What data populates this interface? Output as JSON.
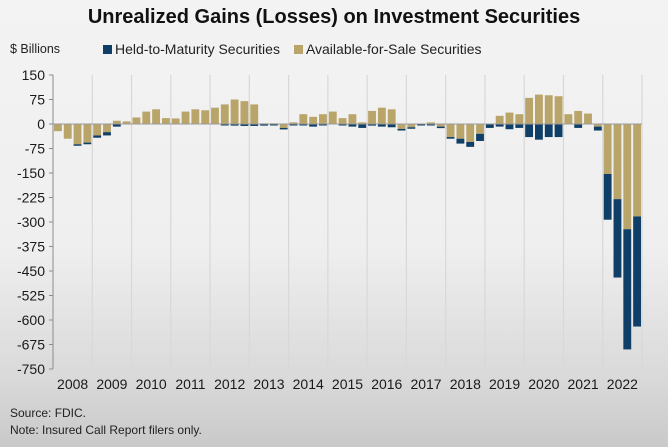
{
  "chart_data": {
    "type": "bar",
    "stacked": true,
    "title": "Unrealized Gains (Losses) on Investment Securities",
    "ylabel": "$ Billions",
    "xlabel": "",
    "ylim": [
      -750,
      150
    ],
    "yticks": [
      150,
      75,
      0,
      -75,
      -150,
      -225,
      -300,
      -375,
      -450,
      -525,
      -600,
      -675,
      -750
    ],
    "xtick_labels": [
      "2008",
      "2009",
      "2010",
      "2011",
      "2012",
      "2013",
      "2014",
      "2015",
      "2016",
      "2017",
      "2018",
      "2019",
      "2020",
      "2021",
      "2022"
    ],
    "quarters_per_year": 4,
    "grid": "vertical",
    "legend_position": "top",
    "colors": {
      "htm": "#0f3f66",
      "afs": "#b9a46a"
    },
    "series": [
      {
        "name": "Held-to-Maturity Securities",
        "key": "htm",
        "values": [
          0,
          0,
          -3,
          -5,
          -7,
          -10,
          -8,
          0,
          0,
          0,
          0,
          0,
          0,
          0,
          0,
          0,
          0,
          -3,
          -5,
          -6,
          -6,
          -5,
          -3,
          -3,
          -3,
          -3,
          -8,
          -2,
          0,
          -2,
          -8,
          -12,
          -5,
          -8,
          -10,
          -5,
          -3,
          -2,
          -2,
          -3,
          -5,
          -15,
          -15,
          -22,
          -12,
          -8,
          -16,
          -12,
          -40,
          -48,
          -40,
          -40,
          0,
          -12,
          0,
          -12,
          -140,
          -240,
          -368,
          -337
        ]
      },
      {
        "name": "Available-for-Sale Securities",
        "key": "afs",
        "values": [
          -22,
          -45,
          -62,
          -57,
          -35,
          -25,
          10,
          8,
          20,
          38,
          45,
          18,
          17,
          38,
          45,
          42,
          50,
          60,
          75,
          70,
          60,
          2,
          2,
          -12,
          5,
          30,
          22,
          30,
          38,
          18,
          30,
          5,
          40,
          50,
          45,
          -15,
          -10,
          0,
          5,
          -8,
          -40,
          -45,
          -55,
          -30,
          0,
          25,
          35,
          30,
          80,
          90,
          88,
          85,
          30,
          40,
          32,
          -8,
          -153,
          -230,
          -322,
          -283
        ]
      }
    ],
    "source": "Source: FDIC.",
    "note": "Note: Insured Call Report filers only."
  }
}
